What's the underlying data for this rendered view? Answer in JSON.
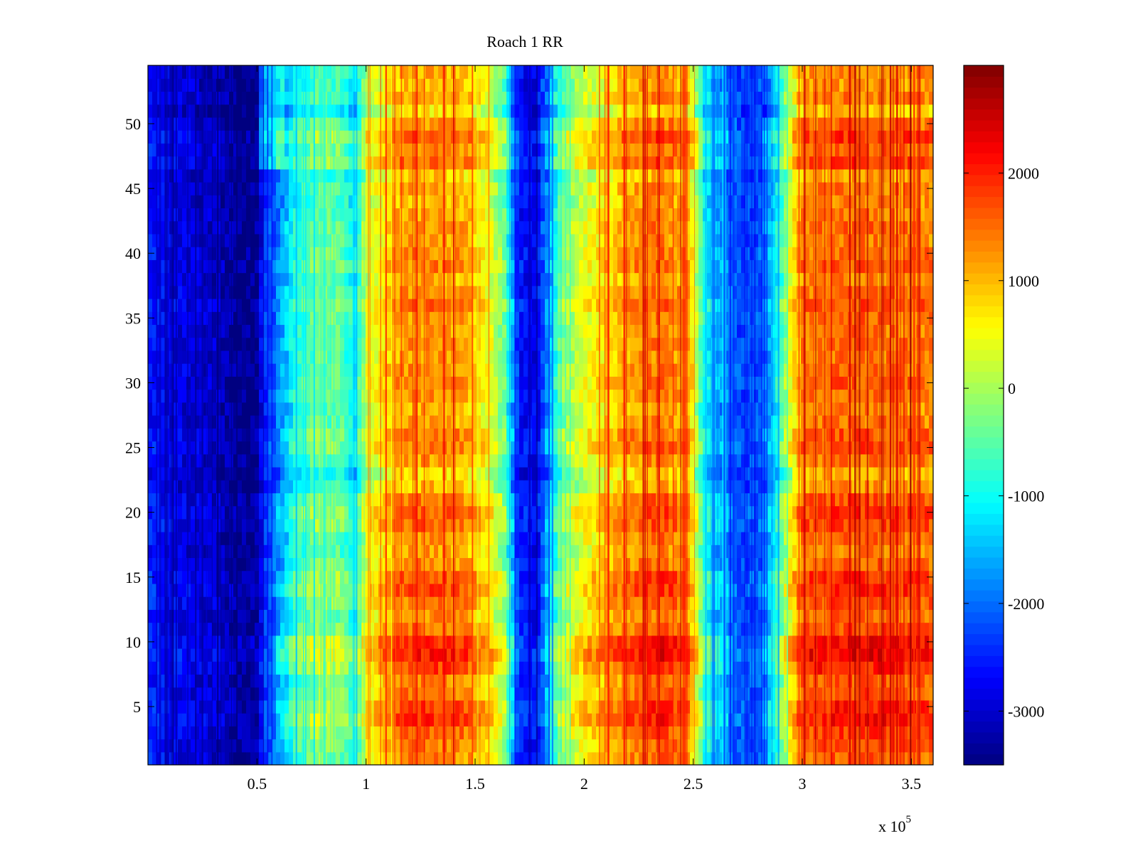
{
  "chart_data": {
    "type": "heatmap",
    "title": "Roach 1 RR",
    "xlabel": "",
    "ylabel": "",
    "xlim": [
      0,
      360000
    ],
    "ylim": [
      0.5,
      54.5
    ],
    "x_multiplier_base": "x 10",
    "x_multiplier_exponent": "5",
    "x_ticks": [
      {
        "value": 50000,
        "label": "0.5"
      },
      {
        "value": 100000,
        "label": "1"
      },
      {
        "value": 150000,
        "label": "1.5"
      },
      {
        "value": 200000,
        "label": "2"
      },
      {
        "value": 250000,
        "label": "2.5"
      },
      {
        "value": 300000,
        "label": "3"
      },
      {
        "value": 350000,
        "label": "3.5"
      }
    ],
    "y_ticks": [
      {
        "value": 5,
        "label": "5"
      },
      {
        "value": 10,
        "label": "10"
      },
      {
        "value": 15,
        "label": "15"
      },
      {
        "value": 20,
        "label": "20"
      },
      {
        "value": 25,
        "label": "25"
      },
      {
        "value": 30,
        "label": "30"
      },
      {
        "value": 35,
        "label": "35"
      },
      {
        "value": 40,
        "label": "40"
      },
      {
        "value": 45,
        "label": "45"
      },
      {
        "value": 50,
        "label": "50"
      }
    ],
    "colorbar": {
      "colormap": "jet",
      "range": [
        -3500,
        3000
      ],
      "ticks": [
        {
          "value": 2000,
          "label": "2000"
        },
        {
          "value": 1000,
          "label": "1000"
        },
        {
          "value": 0,
          "label": "0"
        },
        {
          "value": -1000,
          "label": "-1000"
        },
        {
          "value": -2000,
          "label": "-2000"
        },
        {
          "value": -3000,
          "label": "-3000"
        }
      ]
    },
    "rows": 54,
    "column_profile": [
      {
        "x": 0,
        "v": -2600
      },
      {
        "x": 15000,
        "v": -2900
      },
      {
        "x": 32000,
        "v": -3100
      },
      {
        "x": 40000,
        "v": -3400
      },
      {
        "x": 50000,
        "v": -3400
      },
      {
        "x": 53000,
        "v": -2500
      },
      {
        "x": 60000,
        "v": -1900
      },
      {
        "x": 68000,
        "v": -900
      },
      {
        "x": 78000,
        "v": -400
      },
      {
        "x": 88000,
        "v": -500
      },
      {
        "x": 95000,
        "v": -1200
      },
      {
        "x": 100000,
        "v": 200
      },
      {
        "x": 108000,
        "v": 600
      },
      {
        "x": 115000,
        "v": 1100
      },
      {
        "x": 130000,
        "v": 1200
      },
      {
        "x": 145000,
        "v": 1050
      },
      {
        "x": 155000,
        "v": 500
      },
      {
        "x": 163000,
        "v": -300
      },
      {
        "x": 170000,
        "v": -2600
      },
      {
        "x": 178000,
        "v": -2800
      },
      {
        "x": 183000,
        "v": -1800
      },
      {
        "x": 190000,
        "v": -300
      },
      {
        "x": 200000,
        "v": 300
      },
      {
        "x": 210000,
        "v": 700
      },
      {
        "x": 220000,
        "v": 1100
      },
      {
        "x": 235000,
        "v": 1400
      },
      {
        "x": 248000,
        "v": 1000
      },
      {
        "x": 255000,
        "v": -1000
      },
      {
        "x": 262000,
        "v": -1700
      },
      {
        "x": 272000,
        "v": -2300
      },
      {
        "x": 282000,
        "v": -2100
      },
      {
        "x": 288000,
        "v": -1200
      },
      {
        "x": 295000,
        "v": 400
      },
      {
        "x": 300000,
        "v": 1300
      },
      {
        "x": 320000,
        "v": 1450
      },
      {
        "x": 340000,
        "v": 1400
      },
      {
        "x": 360000,
        "v": 1300
      }
    ],
    "row_offsets": [
      {
        "row": 1,
        "d": 200
      },
      {
        "row": 2,
        "d": 250
      },
      {
        "row": 3,
        "d": 400
      },
      {
        "row": 4,
        "d": 700
      },
      {
        "row": 5,
        "d": 600
      },
      {
        "row": 6,
        "d": 300
      },
      {
        "row": 7,
        "d": 200
      },
      {
        "row": 8,
        "d": 650
      },
      {
        "row": 9,
        "d": 900
      },
      {
        "row": 10,
        "d": 800
      },
      {
        "row": 11,
        "d": 300
      },
      {
        "row": 12,
        "d": 100
      },
      {
        "row": 13,
        "d": 300
      },
      {
        "row": 14,
        "d": 550
      },
      {
        "row": 15,
        "d": 500
      },
      {
        "row": 16,
        "d": 150
      },
      {
        "row": 17,
        "d": 0
      },
      {
        "row": 18,
        "d": 100
      },
      {
        "row": 19,
        "d": 400
      },
      {
        "row": 20,
        "d": 450
      },
      {
        "row": 21,
        "d": 300
      },
      {
        "row": 22,
        "d": -200
      },
      {
        "row": 23,
        "d": -400
      },
      {
        "row": 24,
        "d": 0
      },
      {
        "row": 25,
        "d": 300
      },
      {
        "row": 26,
        "d": 250
      },
      {
        "row": 27,
        "d": 0
      },
      {
        "row": 28,
        "d": -100
      },
      {
        "row": 29,
        "d": 100
      },
      {
        "row": 30,
        "d": 200
      },
      {
        "row": 31,
        "d": 150
      },
      {
        "row": 32,
        "d": 0
      },
      {
        "row": 33,
        "d": 100
      },
      {
        "row": 34,
        "d": 0
      },
      {
        "row": 35,
        "d": 100
      },
      {
        "row": 36,
        "d": 300
      },
      {
        "row": 37,
        "d": 100
      },
      {
        "row": 38,
        "d": -100
      },
      {
        "row": 39,
        "d": 200
      },
      {
        "row": 40,
        "d": 150
      },
      {
        "row": 41,
        "d": 0
      },
      {
        "row": 42,
        "d": 100
      },
      {
        "row": 43,
        "d": 0
      },
      {
        "row": 44,
        "d": -100
      },
      {
        "row": 45,
        "d": 0
      },
      {
        "row": 46,
        "d": -300
      },
      {
        "row": 47,
        "d": 400
      },
      {
        "row": 48,
        "d": 200
      },
      {
        "row": 49,
        "d": 500
      },
      {
        "row": 50,
        "d": 100
      },
      {
        "row": 51,
        "d": -500
      },
      {
        "row": 52,
        "d": 0
      },
      {
        "row": 53,
        "d": -200
      },
      {
        "row": 54,
        "d": -100
      }
    ]
  }
}
